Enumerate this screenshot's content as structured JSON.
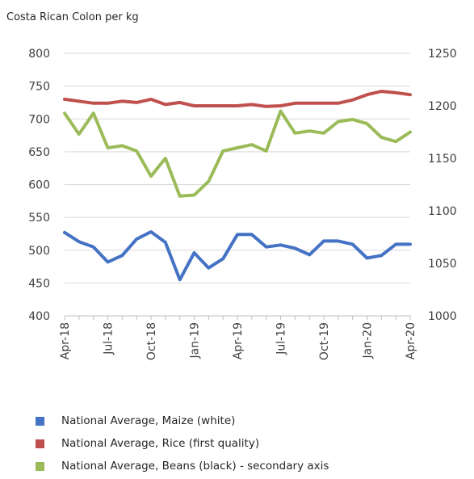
{
  "chart_data": {
    "type": "line",
    "unit_label": "Costa Rican Colon per kg",
    "x": [
      "Apr-18",
      "May-18",
      "Jun-18",
      "Jul-18",
      "Aug-18",
      "Sep-18",
      "Oct-18",
      "Nov-18",
      "Dec-18",
      "Jan-19",
      "Feb-19",
      "Mar-19",
      "Apr-19",
      "May-19",
      "Jun-19",
      "Jul-19",
      "Aug-19",
      "Sep-19",
      "Oct-19",
      "Nov-19",
      "Dec-19",
      "Jan-20",
      "Feb-20",
      "Mar-20",
      "Apr-20"
    ],
    "x_tick_labels": [
      "Apr-18",
      "Jul-18",
      "Oct-18",
      "Jan-19",
      "Apr-19",
      "Jul-19",
      "Oct-19",
      "Jan-20",
      "Apr-20"
    ],
    "x_tick_indices": [
      0,
      3,
      6,
      9,
      12,
      15,
      18,
      21,
      24
    ],
    "y_left": {
      "min": 400,
      "max": 800,
      "step": 50,
      "ticks": [
        "800",
        "750",
        "700",
        "650",
        "600",
        "550",
        "500",
        "450",
        "400"
      ]
    },
    "y_right": {
      "min": 1000,
      "max": 1250,
      "step": 50,
      "ticks": [
        "1250",
        "1200",
        "1150",
        "1100",
        "1050",
        "1000"
      ]
    },
    "grid": true,
    "legend_position": "bottom",
    "series": [
      {
        "name": "National Average, Maize (white)",
        "axis": "left",
        "color": "#4472C4",
        "values": [
          527,
          513,
          505,
          482,
          492,
          517,
          528,
          512,
          455,
          496,
          473,
          487,
          524,
          524,
          505,
          508,
          503,
          493,
          514,
          514,
          509,
          488,
          492,
          509,
          509
        ]
      },
      {
        "name": "National Average, Rice (first quality)",
        "axis": "left",
        "color": "#C0504D",
        "values": [
          730,
          727,
          724,
          724,
          727,
          725,
          730,
          722,
          725,
          720,
          720,
          720,
          720,
          722,
          719,
          720,
          724,
          724,
          724,
          724,
          729,
          737,
          742,
          740,
          737
        ]
      },
      {
        "name": "National Average, Beans (black) - secondary axis",
        "axis": "right",
        "color": "#9BBB59",
        "values": [
          1193,
          1173,
          1193,
          1160,
          1162,
          1157,
          1133,
          1150,
          1114,
          1115,
          1128,
          1157,
          1160,
          1163,
          1157,
          1195,
          1174,
          1176,
          1174,
          1185,
          1187,
          1183,
          1170,
          1166,
          1175
        ]
      }
    ]
  }
}
